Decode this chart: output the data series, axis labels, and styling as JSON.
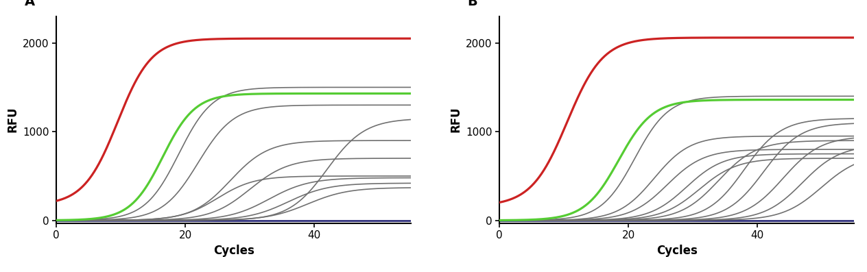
{
  "panel_A_label": "A",
  "panel_B_label": "B",
  "xlabel": "Cycles",
  "ylabel": "RFU",
  "xlim": [
    0,
    55
  ],
  "ylim": [
    -30,
    2300
  ],
  "yticks": [
    0,
    1000,
    2000
  ],
  "xticks": [
    0,
    20,
    40
  ],
  "red_color": "#cc2222",
  "green_color": "#55cc33",
  "blue_color": "#1a1a6e",
  "gray_color": "#707070",
  "background": "#ffffff",
  "figsize": [
    12.64,
    3.97
  ],
  "dpi": 100,
  "linewidth_main": 1.8,
  "linewidth_gray": 1.2
}
